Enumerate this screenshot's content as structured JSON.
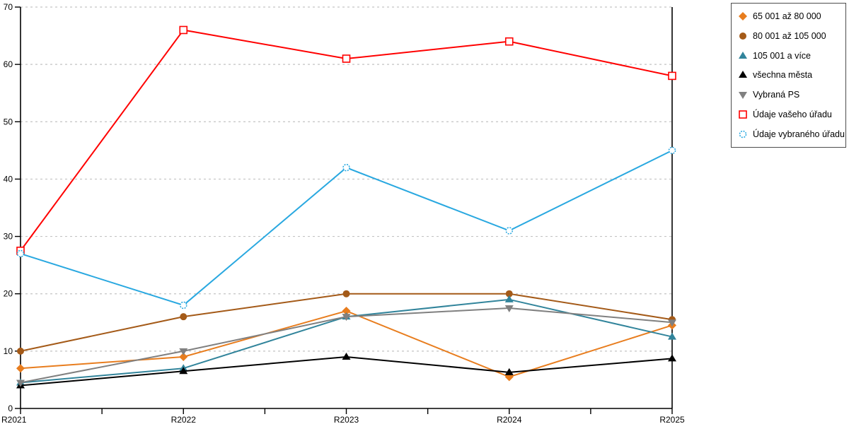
{
  "chart_data": {
    "type": "line",
    "title": "",
    "xlabel": "",
    "ylabel": "",
    "categories": [
      "R2021",
      "R2022",
      "R2023",
      "R2024",
      "R2025"
    ],
    "series": [
      {
        "name": "65 001 až 80 000",
        "marker": "diamond",
        "color": "#E87D1E",
        "open": false,
        "values": [
          7,
          9,
          17,
          5.5,
          14.5
        ]
      },
      {
        "name": "80 001 až 105 000",
        "marker": "circle",
        "color": "#A45A18",
        "open": false,
        "values": [
          10,
          16,
          20,
          20,
          15.5
        ]
      },
      {
        "name": "105 001 a více",
        "marker": "triangle-up",
        "color": "#31849B",
        "open": false,
        "values": [
          4.5,
          7,
          16,
          19,
          12.5
        ]
      },
      {
        "name": "všechna města",
        "marker": "triangle-up",
        "color": "#000000",
        "open": false,
        "values": [
          4,
          6.5,
          9,
          6.3,
          8.7
        ]
      },
      {
        "name": "Vybraná PS",
        "marker": "triangle-down",
        "color": "#808080",
        "open": false,
        "values": [
          4.5,
          10,
          16,
          17.5,
          15
        ]
      },
      {
        "name": "Údaje vašeho úřadu",
        "marker": "square-open",
        "color": "#FF0000",
        "open": true,
        "values": [
          27.5,
          66,
          61,
          64,
          58
        ]
      },
      {
        "name": "Údaje vybraného úřadu",
        "marker": "circle-open",
        "color": "#29A8E0",
        "open": true,
        "values": [
          27,
          18,
          42,
          31,
          45
        ]
      }
    ],
    "ylim": [
      0,
      70
    ],
    "yticks": [
      0,
      10,
      20,
      30,
      40,
      50,
      60,
      70
    ],
    "grid": "horizontal-dashed",
    "legend_position": "top-right"
  },
  "colors": {
    "gridline": "#C3C3C3",
    "axis": "#000000",
    "background": "#ffffff"
  }
}
